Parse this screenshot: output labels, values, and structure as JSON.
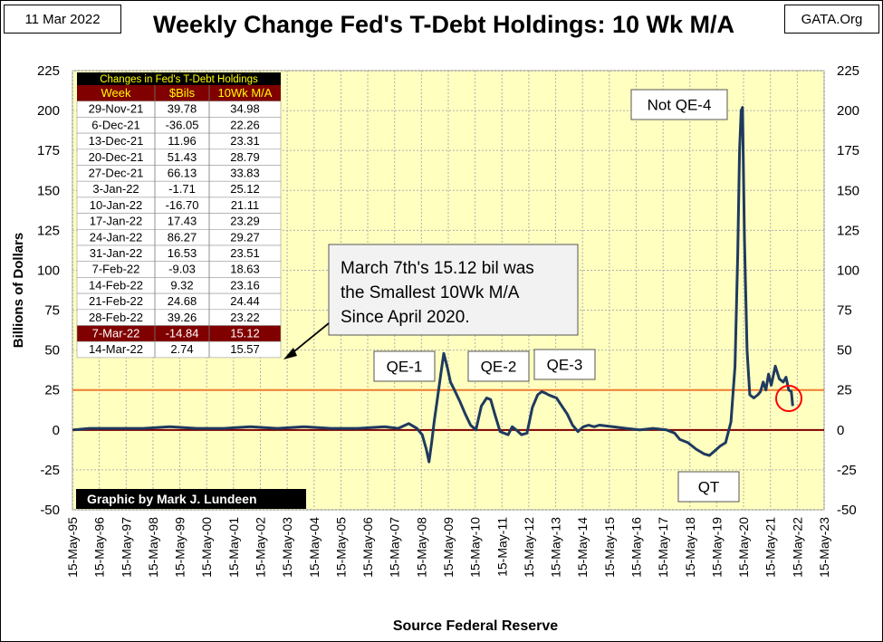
{
  "header": {
    "date": "11 Mar 2022",
    "title": "Weekly Change Fed's T-Debt Holdings: 10 Wk M/A",
    "site": "GATA.Org"
  },
  "colors": {
    "plot_bg": "#ffffc0",
    "line": "#1f3a5f",
    "ref25": "#ed7d31",
    "zero": "#7f0000",
    "table_header_bg": "#800000",
    "table_header_text": "#ffff00",
    "highlight_circle": "#ff0000"
  },
  "table": {
    "title": "Changes in Fed's T-Debt Holdings",
    "columns": [
      "Week",
      "$Bils",
      "10Wk M/A"
    ],
    "highlight_row": 13,
    "rows": [
      [
        "29-Nov-21",
        "39.78",
        "34.98"
      ],
      [
        "6-Dec-21",
        "-36.05",
        "22.26"
      ],
      [
        "13-Dec-21",
        "11.96",
        "23.31"
      ],
      [
        "20-Dec-21",
        "51.43",
        "28.79"
      ],
      [
        "27-Dec-21",
        "66.13",
        "33.83"
      ],
      [
        "3-Jan-22",
        "-1.71",
        "25.12"
      ],
      [
        "10-Jan-22",
        "-16.70",
        "21.11"
      ],
      [
        "17-Jan-22",
        "17.43",
        "23.29"
      ],
      [
        "24-Jan-22",
        "86.27",
        "29.27"
      ],
      [
        "31-Jan-22",
        "16.53",
        "23.51"
      ],
      [
        "7-Feb-22",
        "-9.03",
        "18.63"
      ],
      [
        "14-Feb-22",
        "9.32",
        "23.16"
      ],
      [
        "21-Feb-22",
        "24.68",
        "24.44"
      ],
      [
        "7-Mar-22",
        "-14.84",
        "15.12"
      ],
      [
        "14-Mar-22",
        "2.74",
        "15.57"
      ]
    ],
    "extra_rows": [
      [
        "28-Feb-22",
        "39.26",
        "23.22"
      ]
    ]
  },
  "annotations": {
    "callout": [
      "March 7th's 15.12 bil was",
      "the Smallest 10Wk M/A",
      "Since April 2020."
    ],
    "qe1": "QE-1",
    "qe2": "QE-2",
    "qe3": "QE-3",
    "not_qe4": "Not QE-4",
    "qt": "QT",
    "credit": "Graphic by Mark J. Lundeen"
  },
  "chart_data": {
    "type": "line",
    "ylabel": "Billions   of   Dollars",
    "xlabel": "Source Federal Reserve",
    "ylim": [
      -50,
      225
    ],
    "yticks": [
      -50,
      -25,
      0,
      25,
      50,
      75,
      100,
      125,
      150,
      175,
      200,
      225
    ],
    "xlim": [
      1995.37,
      2023.37
    ],
    "xticks": [
      "15-May-95",
      "15-May-96",
      "15-May-97",
      "15-May-98",
      "15-May-99",
      "15-May-00",
      "15-May-01",
      "15-May-02",
      "15-May-03",
      "15-May-04",
      "15-May-05",
      "15-May-06",
      "15-May-07",
      "15-May-08",
      "15-May-09",
      "15-May-10",
      "15-May-11",
      "15-May-12",
      "15-May-13",
      "15-May-14",
      "15-May-15",
      "15-May-16",
      "15-May-17",
      "15-May-18",
      "15-May-19",
      "15-May-20",
      "15-May-21",
      "15-May-22",
      "15-May-23"
    ],
    "reference_lines": [
      0,
      25
    ],
    "series": [
      {
        "x": [
          1995.4,
          1996.0,
          1997.0,
          1998.0,
          1999.0,
          2000.0,
          2001.0,
          2002.0,
          2003.0,
          2004.0,
          2005.0,
          2006.0,
          2007.0,
          2007.5,
          2007.9,
          2008.2,
          2008.4,
          2008.55,
          2008.65,
          2008.75,
          2008.85,
          2008.95,
          2009.1,
          2009.2,
          2009.35,
          2009.45,
          2009.6,
          2009.8,
          2010.0,
          2010.2,
          2010.4,
          2010.6,
          2010.8,
          2010.95,
          2011.1,
          2011.3,
          2011.6,
          2011.75,
          2011.9,
          2012.1,
          2012.3,
          2012.5,
          2012.7,
          2012.85,
          2013.0,
          2013.1,
          2013.25,
          2013.4,
          2013.6,
          2013.8,
          2014.0,
          2014.2,
          2014.4,
          2014.6,
          2014.8,
          2015.0,
          2015.5,
          2016.0,
          2016.5,
          2017.0,
          2017.5,
          2017.8,
          2018.0,
          2018.3,
          2018.6,
          2018.9,
          2019.1,
          2019.3,
          2019.5,
          2019.7,
          2019.9,
          2020.05,
          2020.15,
          2020.22,
          2020.28,
          2020.33,
          2020.4,
          2020.5,
          2020.6,
          2020.75,
          2020.9,
          2021.0,
          2021.1,
          2021.2,
          2021.3,
          2021.4,
          2021.55,
          2021.7,
          2021.85,
          2021.95,
          2022.05,
          2022.15,
          2022.2
        ],
        "y": [
          0,
          1,
          1,
          1,
          2,
          1,
          1,
          2,
          1,
          2,
          1,
          1,
          2,
          1,
          4,
          1,
          -3,
          -12,
          -20,
          -8,
          6,
          18,
          36,
          48,
          38,
          30,
          25,
          18,
          10,
          3,
          0,
          15,
          20,
          19,
          10,
          -1,
          -3,
          2,
          0,
          -3,
          -2,
          14,
          22,
          24,
          23,
          22,
          21,
          20,
          15,
          10,
          3,
          -1,
          2,
          3,
          2,
          3,
          2,
          1,
          0,
          1,
          0,
          -2,
          -6,
          -8,
          -12,
          -15,
          -16,
          -13,
          -10,
          -8,
          5,
          40,
          110,
          175,
          200,
          202,
          120,
          50,
          22,
          20,
          22,
          24,
          30,
          25,
          35,
          28,
          40,
          32,
          30,
          33,
          25,
          24,
          15
        ]
      }
    ]
  }
}
